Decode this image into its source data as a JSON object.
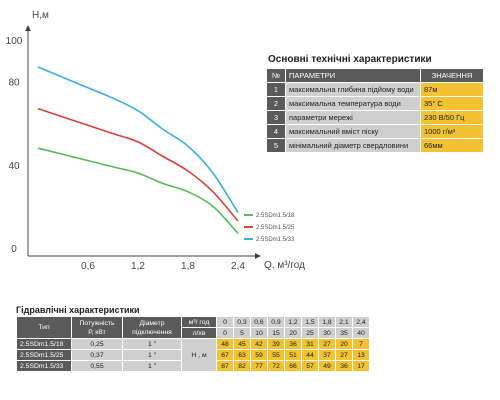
{
  "chart_data": {
    "type": "line",
    "ylabel": "H,м",
    "xlabel": "Q, м³/год",
    "xlim": [
      0,
      2.4
    ],
    "ylim": [
      0,
      100
    ],
    "xticks": [
      "0,6",
      "1,2",
      "1,8",
      "2,4"
    ],
    "xtick_values": [
      0.6,
      1.2,
      1.8,
      2.4
    ],
    "yticks": [
      "0",
      "40",
      "80",
      "100"
    ],
    "ytick_values": [
      0,
      40,
      80,
      100
    ],
    "grid": false,
    "legend_position": "bottom-right",
    "series": [
      {
        "name": "2.5SDm1.5/18",
        "color": "#5cb85c",
        "x": [
          0,
          0.3,
          0.6,
          0.9,
          1.2,
          1.5,
          1.8,
          2.1,
          2.4
        ],
        "y": [
          48,
          45,
          42,
          39,
          36,
          31,
          27,
          20,
          7
        ]
      },
      {
        "name": "2.5SDm1.5/25",
        "color": "#d9403a",
        "x": [
          0,
          0.3,
          0.6,
          0.9,
          1.2,
          1.5,
          1.8,
          2.1,
          2.4
        ],
        "y": [
          67,
          63,
          59,
          55,
          51,
          44,
          37,
          27,
          13
        ]
      },
      {
        "name": "2.5SDm1.5/33",
        "color": "#3aaee0",
        "x": [
          0,
          0.3,
          0.6,
          0.9,
          1.2,
          1.5,
          1.8,
          2.1,
          2.4
        ],
        "y": [
          87,
          82,
          77,
          72,
          66,
          57,
          49,
          36,
          17
        ]
      }
    ]
  },
  "specs": {
    "title": "Основні технічні характеристики",
    "col_no": "№",
    "col_param": "ПАРАМЕТРИ",
    "col_value": "ЗНАЧЕННЯ",
    "rows": [
      {
        "no": "1",
        "param": "максимальна глибина підйому води",
        "value": "87м"
      },
      {
        "no": "2",
        "param": "максимальна температура води",
        "value": "35° С"
      },
      {
        "no": "3",
        "param": "параметри мережі",
        "value": "230 В/50 Гц"
      },
      {
        "no": "4",
        "param": "максимальний вміст піску",
        "value": "1000 г/м³"
      },
      {
        "no": "5",
        "param": "мінімальний діаметр свердловини",
        "value": "66мм"
      }
    ]
  },
  "hydraulic": {
    "title": "Гідравлічні характеристики",
    "h_type": "Тип",
    "h_power": "Потужність\nР, кВт",
    "h_diam": "Діаметр\nпідключення",
    "h_q_m3": "м³/ год",
    "h_q_l": "л/хв",
    "h_h": "Н , м",
    "q_m3": [
      "0",
      "0,3",
      "0,6",
      "0,9",
      "1,2",
      "1,5",
      "1,8",
      "2,1",
      "2,4"
    ],
    "q_l": [
      "0",
      "5",
      "10",
      "15",
      "20",
      "25",
      "30",
      "35",
      "40"
    ],
    "models": [
      {
        "type": "2.5SDm1.5/18",
        "power": "0,25",
        "diam": "1 \"",
        "h": [
          "48",
          "45",
          "42",
          "39",
          "36",
          "31",
          "27",
          "20",
          "7"
        ]
      },
      {
        "type": "2.5SDm1.5/25",
        "power": "0,37",
        "diam": "1 \"",
        "h": [
          "67",
          "63",
          "59",
          "55",
          "51",
          "44",
          "37",
          "27",
          "13"
        ]
      },
      {
        "type": "2.5SDm1.5/33",
        "power": "0,55",
        "diam": "1 \"",
        "h": [
          "87",
          "82",
          "77",
          "72",
          "66",
          "57",
          "49",
          "36",
          "17"
        ]
      }
    ]
  }
}
